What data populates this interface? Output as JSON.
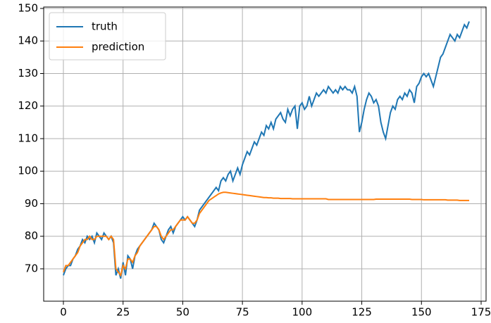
{
  "chart_data": {
    "type": "line",
    "x": [
      0,
      1,
      2,
      3,
      4,
      5,
      6,
      7,
      8,
      9,
      10,
      11,
      12,
      13,
      14,
      15,
      16,
      17,
      18,
      19,
      20,
      21,
      22,
      23,
      24,
      25,
      26,
      27,
      28,
      29,
      30,
      31,
      32,
      33,
      34,
      35,
      36,
      37,
      38,
      39,
      40,
      41,
      42,
      43,
      44,
      45,
      46,
      47,
      48,
      49,
      50,
      51,
      52,
      53,
      54,
      55,
      56,
      57,
      58,
      59,
      60,
      61,
      62,
      63,
      64,
      65,
      66,
      67,
      68,
      69,
      70,
      71,
      72,
      73,
      74,
      75,
      76,
      77,
      78,
      79,
      80,
      81,
      82,
      83,
      84,
      85,
      86,
      87,
      88,
      89,
      90,
      91,
      92,
      93,
      94,
      95,
      96,
      97,
      98,
      99,
      100,
      101,
      102,
      103,
      104,
      105,
      106,
      107,
      108,
      109,
      110,
      111,
      112,
      113,
      114,
      115,
      116,
      117,
      118,
      119,
      120,
      121,
      122,
      123,
      124,
      125,
      126,
      127,
      128,
      129,
      130,
      131,
      132,
      133,
      134,
      135,
      136,
      137,
      138,
      139,
      140,
      141,
      142,
      143,
      144,
      145,
      146,
      147,
      148,
      149,
      150,
      151,
      152,
      153,
      154,
      155,
      156,
      157,
      158,
      159,
      160,
      161,
      162,
      163,
      164,
      165,
      166,
      167,
      168,
      169,
      170
    ],
    "series": [
      {
        "name": "truth",
        "color": "#1f77b4",
        "values": [
          68,
          70,
          71,
          71,
          73,
          74,
          76,
          77,
          79,
          78,
          80,
          79,
          80,
          78,
          81,
          80,
          79,
          81,
          80,
          79,
          80,
          78,
          68,
          70,
          67,
          72,
          68,
          74,
          73,
          70,
          74,
          76,
          77,
          78,
          79,
          80,
          81,
          82,
          84,
          83,
          82,
          79,
          78,
          80,
          82,
          83,
          81,
          83,
          84,
          85,
          86,
          85,
          86,
          85,
          84,
          83,
          85,
          88,
          89,
          90,
          91,
          92,
          93,
          94,
          95,
          94,
          97,
          98,
          97,
          99,
          100,
          97,
          99,
          101,
          99,
          102,
          104,
          106,
          105,
          107,
          109,
          108,
          110,
          112,
          111,
          114,
          113,
          115,
          113,
          116,
          117,
          118,
          116,
          115,
          119,
          117,
          119,
          120,
          113,
          120,
          121,
          119,
          120,
          123,
          120,
          122,
          124,
          123,
          124,
          125,
          124,
          126,
          125,
          124,
          125,
          124,
          126,
          125,
          126,
          125,
          125,
          124,
          126,
          123,
          112,
          115,
          119,
          122,
          124,
          123,
          121,
          122,
          120,
          115,
          112,
          110,
          114,
          118,
          120,
          119,
          122,
          123,
          122,
          124,
          123,
          125,
          124,
          121,
          126,
          127,
          129,
          130,
          129,
          130,
          128,
          126,
          129,
          132,
          135,
          136,
          138,
          140,
          142,
          141,
          140,
          142,
          141,
          143,
          145,
          144,
          146
        ]
      },
      {
        "name": "prediction",
        "color": "#ff7f0e",
        "values": [
          69,
          71,
          71,
          72,
          73,
          74,
          75,
          77,
          78,
          79,
          79,
          80,
          79,
          79,
          80,
          80,
          80,
          80,
          80,
          79,
          80,
          79,
          70,
          69,
          68,
          71,
          70,
          73,
          73,
          72,
          74,
          75,
          77,
          78,
          79,
          80,
          81,
          82,
          83,
          83,
          82,
          80,
          79,
          80,
          81,
          82,
          82,
          83,
          84,
          85,
          85,
          85,
          86,
          85,
          84,
          84,
          85,
          87,
          88,
          89,
          90,
          91,
          91.5,
          92,
          92.5,
          93,
          93.3,
          93.5,
          93.5,
          93.4,
          93.3,
          93.2,
          93.1,
          93,
          92.9,
          92.8,
          92.7,
          92.6,
          92.5,
          92.4,
          92.3,
          92.2,
          92.1,
          92,
          91.9,
          91.9,
          91.8,
          91.8,
          91.7,
          91.7,
          91.7,
          91.6,
          91.6,
          91.6,
          91.6,
          91.6,
          91.5,
          91.5,
          91.5,
          91.5,
          91.5,
          91.5,
          91.5,
          91.5,
          91.5,
          91.5,
          91.5,
          91.5,
          91.5,
          91.5,
          91.5,
          91.3,
          91.3,
          91.3,
          91.3,
          91.3,
          91.3,
          91.3,
          91.3,
          91.3,
          91.3,
          91.3,
          91.3,
          91.3,
          91.3,
          91.3,
          91.3,
          91.3,
          91.3,
          91.3,
          91.3,
          91.4,
          91.4,
          91.4,
          91.4,
          91.4,
          91.4,
          91.4,
          91.4,
          91.4,
          91.4,
          91.4,
          91.4,
          91.4,
          91.4,
          91.4,
          91.3,
          91.3,
          91.3,
          91.3,
          91.3,
          91.2,
          91.2,
          91.2,
          91.2,
          91.2,
          91.2,
          91.2,
          91.2,
          91.2,
          91.2,
          91.1,
          91.1,
          91.1,
          91.1,
          91.1,
          91,
          91,
          91,
          91,
          91
        ]
      }
    ],
    "xlim": [
      -8.26,
      177.07
    ],
    "ylim": [
      60.05,
      150.43
    ],
    "xticks": [
      0,
      25,
      50,
      75,
      100,
      125,
      150,
      175
    ],
    "yticks": [
      70,
      80,
      90,
      100,
      110,
      120,
      130,
      140,
      150
    ],
    "grid": true,
    "legend": "upper left"
  }
}
